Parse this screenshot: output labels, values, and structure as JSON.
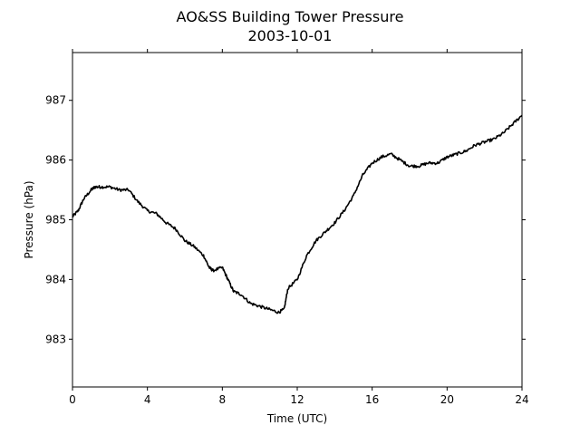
{
  "chart_data": {
    "type": "line",
    "title": "AO&SS Building Tower Pressure",
    "subtitle": "2003-10-01",
    "xlabel": "Time (UTC)",
    "ylabel": "Pressure (hPa)",
    "xlim": [
      0,
      24
    ],
    "ylim": [
      982.2,
      987.8
    ],
    "xticks": [
      0,
      4,
      8,
      12,
      16,
      20,
      24
    ],
    "yticks": [
      983,
      984,
      985,
      986,
      987
    ],
    "grid": false,
    "line_color": "#000000",
    "series": [
      {
        "x": [
          0,
          0.3,
          0.6,
          1.0,
          1.2,
          1.5,
          2.0,
          2.5,
          3.0,
          3.5,
          4.0,
          4.5,
          5.0,
          5.5,
          6.0,
          6.5,
          7.0,
          7.3,
          7.5,
          8.0,
          8.3,
          8.6,
          9.0,
          9.5,
          10.0,
          10.5,
          11.0,
          11.3,
          11.5,
          12.0,
          12.5,
          13.0,
          13.5,
          14.0,
          14.5,
          15.0,
          15.5,
          16.0,
          16.5,
          17.0,
          17.5,
          18.0,
          18.5,
          19.0,
          19.5,
          20.0,
          20.5,
          21.0,
          21.5,
          22.0,
          22.5,
          23.0,
          23.5,
          24.0
        ],
        "values": [
          985.05,
          985.15,
          985.35,
          985.5,
          985.55,
          985.55,
          985.55,
          985.5,
          985.5,
          985.3,
          985.15,
          985.1,
          984.95,
          984.85,
          984.65,
          984.55,
          984.4,
          984.2,
          984.15,
          984.2,
          984.0,
          983.8,
          983.75,
          983.6,
          983.55,
          983.5,
          983.45,
          983.5,
          983.85,
          984.0,
          984.4,
          984.65,
          984.8,
          984.95,
          985.15,
          985.4,
          985.75,
          985.95,
          986.05,
          986.1,
          986.0,
          985.9,
          985.9,
          985.95,
          985.95,
          986.05,
          986.1,
          986.15,
          986.25,
          986.3,
          986.35,
          986.45,
          986.6,
          986.75
        ]
      }
    ]
  }
}
